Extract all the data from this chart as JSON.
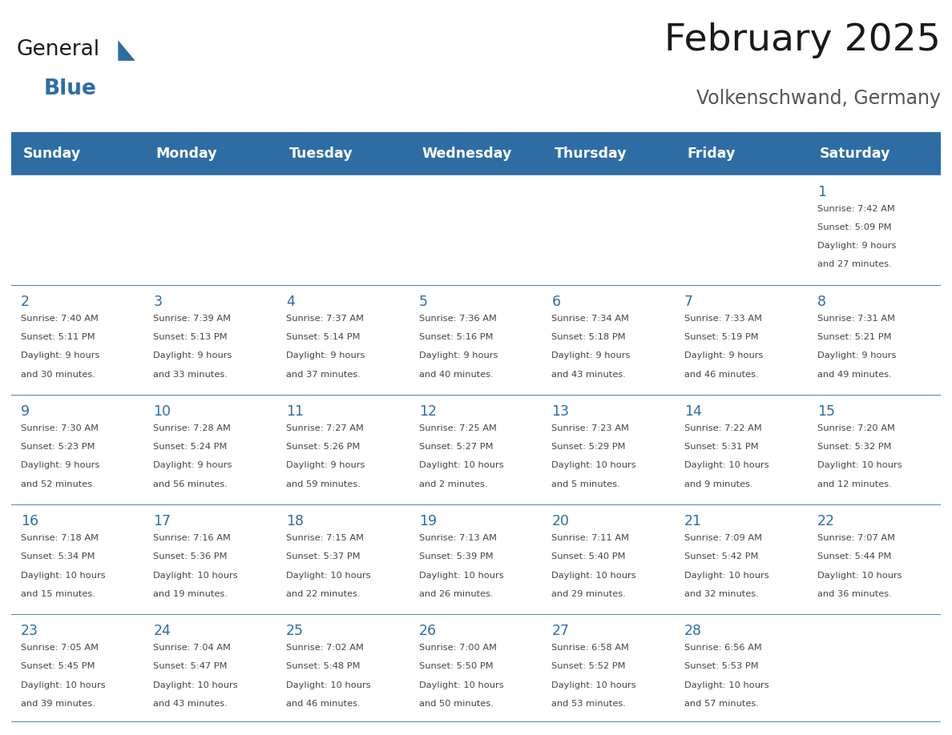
{
  "title": "February 2025",
  "subtitle": "Volkenschwand, Germany",
  "days_of_week": [
    "Sunday",
    "Monday",
    "Tuesday",
    "Wednesday",
    "Thursday",
    "Friday",
    "Saturday"
  ],
  "header_bg": "#2E6DA4",
  "header_text": "#FFFFFF",
  "cell_bg_odd": "#F2F2F2",
  "cell_bg_even": "#FFFFFF",
  "border_color": "#2E6DA4",
  "title_color": "#1a1a1a",
  "subtitle_color": "#555555",
  "day_number_color": "#2E6DA4",
  "cell_text_color": "#444444",
  "logo_color_general": "#1a1a1a",
  "logo_color_blue": "#2E6DA4",
  "calendar_data": [
    [
      null,
      null,
      null,
      null,
      null,
      null,
      {
        "day": 1,
        "sunrise": "7:42 AM",
        "sunset": "5:09 PM",
        "daylight": "9 hours\nand 27 minutes."
      }
    ],
    [
      {
        "day": 2,
        "sunrise": "7:40 AM",
        "sunset": "5:11 PM",
        "daylight": "9 hours\nand 30 minutes."
      },
      {
        "day": 3,
        "sunrise": "7:39 AM",
        "sunset": "5:13 PM",
        "daylight": "9 hours\nand 33 minutes."
      },
      {
        "day": 4,
        "sunrise": "7:37 AM",
        "sunset": "5:14 PM",
        "daylight": "9 hours\nand 37 minutes."
      },
      {
        "day": 5,
        "sunrise": "7:36 AM",
        "sunset": "5:16 PM",
        "daylight": "9 hours\nand 40 minutes."
      },
      {
        "day": 6,
        "sunrise": "7:34 AM",
        "sunset": "5:18 PM",
        "daylight": "9 hours\nand 43 minutes."
      },
      {
        "day": 7,
        "sunrise": "7:33 AM",
        "sunset": "5:19 PM",
        "daylight": "9 hours\nand 46 minutes."
      },
      {
        "day": 8,
        "sunrise": "7:31 AM",
        "sunset": "5:21 PM",
        "daylight": "9 hours\nand 49 minutes."
      }
    ],
    [
      {
        "day": 9,
        "sunrise": "7:30 AM",
        "sunset": "5:23 PM",
        "daylight": "9 hours\nand 52 minutes."
      },
      {
        "day": 10,
        "sunrise": "7:28 AM",
        "sunset": "5:24 PM",
        "daylight": "9 hours\nand 56 minutes."
      },
      {
        "day": 11,
        "sunrise": "7:27 AM",
        "sunset": "5:26 PM",
        "daylight": "9 hours\nand 59 minutes."
      },
      {
        "day": 12,
        "sunrise": "7:25 AM",
        "sunset": "5:27 PM",
        "daylight": "10 hours\nand 2 minutes."
      },
      {
        "day": 13,
        "sunrise": "7:23 AM",
        "sunset": "5:29 PM",
        "daylight": "10 hours\nand 5 minutes."
      },
      {
        "day": 14,
        "sunrise": "7:22 AM",
        "sunset": "5:31 PM",
        "daylight": "10 hours\nand 9 minutes."
      },
      {
        "day": 15,
        "sunrise": "7:20 AM",
        "sunset": "5:32 PM",
        "daylight": "10 hours\nand 12 minutes."
      }
    ],
    [
      {
        "day": 16,
        "sunrise": "7:18 AM",
        "sunset": "5:34 PM",
        "daylight": "10 hours\nand 15 minutes."
      },
      {
        "day": 17,
        "sunrise": "7:16 AM",
        "sunset": "5:36 PM",
        "daylight": "10 hours\nand 19 minutes."
      },
      {
        "day": 18,
        "sunrise": "7:15 AM",
        "sunset": "5:37 PM",
        "daylight": "10 hours\nand 22 minutes."
      },
      {
        "day": 19,
        "sunrise": "7:13 AM",
        "sunset": "5:39 PM",
        "daylight": "10 hours\nand 26 minutes."
      },
      {
        "day": 20,
        "sunrise": "7:11 AM",
        "sunset": "5:40 PM",
        "daylight": "10 hours\nand 29 minutes."
      },
      {
        "day": 21,
        "sunrise": "7:09 AM",
        "sunset": "5:42 PM",
        "daylight": "10 hours\nand 32 minutes."
      },
      {
        "day": 22,
        "sunrise": "7:07 AM",
        "sunset": "5:44 PM",
        "daylight": "10 hours\nand 36 minutes."
      }
    ],
    [
      {
        "day": 23,
        "sunrise": "7:05 AM",
        "sunset": "5:45 PM",
        "daylight": "10 hours\nand 39 minutes."
      },
      {
        "day": 24,
        "sunrise": "7:04 AM",
        "sunset": "5:47 PM",
        "daylight": "10 hours\nand 43 minutes."
      },
      {
        "day": 25,
        "sunrise": "7:02 AM",
        "sunset": "5:48 PM",
        "daylight": "10 hours\nand 46 minutes."
      },
      {
        "day": 26,
        "sunrise": "7:00 AM",
        "sunset": "5:50 PM",
        "daylight": "10 hours\nand 50 minutes."
      },
      {
        "day": 27,
        "sunrise": "6:58 AM",
        "sunset": "5:52 PM",
        "daylight": "10 hours\nand 53 minutes."
      },
      {
        "day": 28,
        "sunrise": "6:56 AM",
        "sunset": "5:53 PM",
        "daylight": "10 hours\nand 57 minutes."
      },
      null
    ]
  ]
}
